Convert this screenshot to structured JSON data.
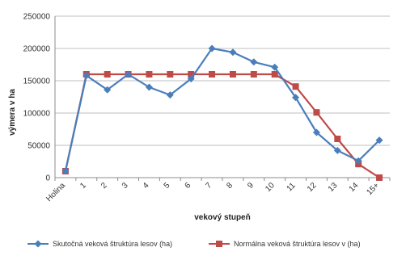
{
  "chart_data": {
    "type": "line",
    "title": "",
    "xlabel": "vekový stupeň",
    "ylabel": "výmera v ha",
    "categories": [
      "Holina",
      "1",
      "2",
      "3",
      "4",
      "5",
      "6",
      "7",
      "8",
      "9",
      "10",
      "11",
      "12",
      "13",
      "14",
      "15+"
    ],
    "ylim": [
      0,
      250000
    ],
    "yticks": [
      "0",
      "50000",
      "100000",
      "150000",
      "200000",
      "250000"
    ],
    "grid": true,
    "legend_position": "bottom",
    "series": [
      {
        "name": "Skutočná veková štruktúra lesov (ha)",
        "color": "#4a7ebb",
        "marker": "diamond",
        "values": [
          10000,
          158000,
          136000,
          160000,
          140000,
          128000,
          153000,
          200000,
          194000,
          179000,
          171000,
          124000,
          70000,
          42000,
          26000,
          58000
        ]
      },
      {
        "name": "Normálna veková štruktúra lesov v (ha)",
        "color": "#be4b48",
        "marker": "square",
        "values": [
          10000,
          160000,
          160000,
          160000,
          160000,
          160000,
          160000,
          160000,
          160000,
          160000,
          160000,
          141000,
          101000,
          60000,
          21000,
          0
        ]
      }
    ]
  }
}
